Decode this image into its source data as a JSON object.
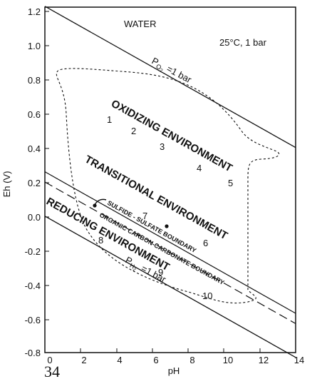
{
  "axes": {
    "xlabel": "pH",
    "ylabel": "Eh (V)",
    "xlim": [
      0,
      14
    ],
    "ylim": [
      -0.8,
      1.2
    ],
    "xticks": [
      "0",
      "2",
      "4",
      "6",
      "8",
      "10",
      "12",
      "14"
    ],
    "yticks": [
      "1.2",
      "1.0",
      "0.8",
      "0.6",
      "0.4",
      "0.2",
      "0.0",
      "-0.2",
      "-0.4",
      "-0.6",
      "-0.8"
    ]
  },
  "labels": {
    "water": "WATER",
    "conditions": "25°C, 1 bar",
    "po2_main": "P",
    "po2_sub": "O",
    "po2_subsub": "2",
    "po2_rest": "=1 bar",
    "ph2_main": "P",
    "ph2_sub": "H",
    "ph2_subsub": "2",
    "ph2_rest": "=1 bar",
    "oxidizing": "OXIDIZING ENVIRONMENT",
    "transitional": "TRANSITIONAL ENVIRONMENT",
    "reducing": "REDUCING ENVIRONMENT",
    "sulfide": "SULFIDE - SULFATE BOUNDARY",
    "organic": "ORGANIC CARBON-CARBONATE BOUNDARY",
    "page_number": "34"
  },
  "points": [
    "1",
    "2",
    "3",
    "4",
    "5",
    "6",
    "7",
    "8",
    "9",
    "10"
  ],
  "lines": {
    "o2": {
      "x": [
        0,
        14
      ],
      "y": [
        1.23,
        0.402
      ]
    },
    "h2": {
      "x": [
        0,
        14
      ],
      "y": [
        0.0,
        -0.828
      ]
    },
    "sulfide": {
      "x": [
        0,
        14
      ],
      "y": [
        0.26,
        -0.57
      ]
    },
    "organic": {
      "x": [
        0,
        14
      ],
      "y": [
        0.2,
        -0.63
      ]
    }
  }
}
